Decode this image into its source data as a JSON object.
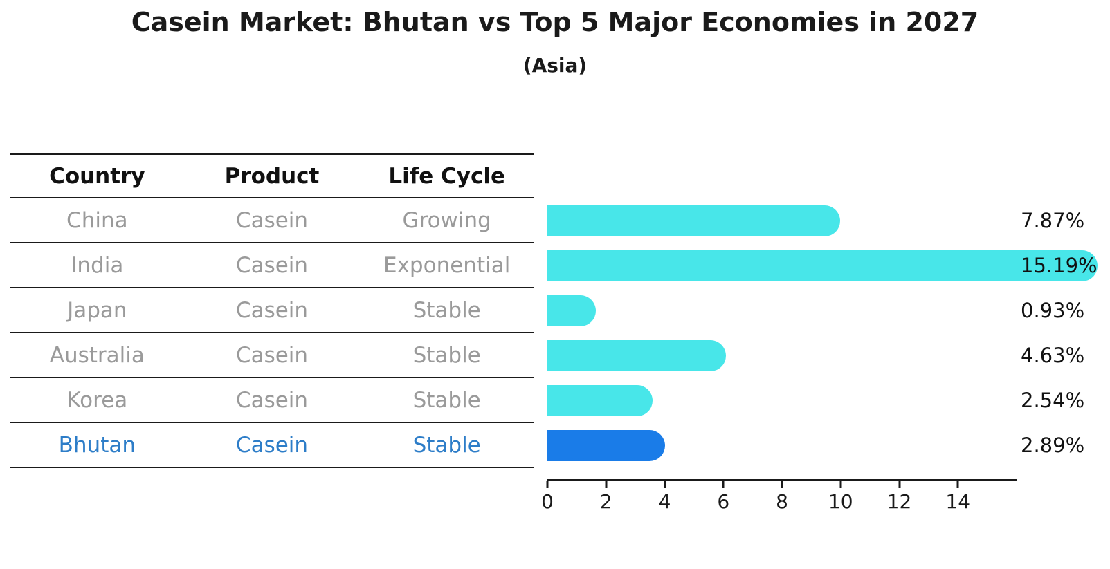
{
  "title": "Casein Market: Bhutan vs Top 5 Major Economies in 2027",
  "subtitle": "(Asia)",
  "table": {
    "headers": [
      "Country",
      "Product",
      "Life Cycle"
    ],
    "rows": [
      {
        "country": "China",
        "product": "Casein",
        "life_cycle": "Growing"
      },
      {
        "country": "India",
        "product": "Casein",
        "life_cycle": "Exponential"
      },
      {
        "country": "Japan",
        "product": "Casein",
        "life_cycle": "Stable"
      },
      {
        "country": "Australia",
        "product": "Casein",
        "life_cycle": "Stable"
      },
      {
        "country": "Korea",
        "product": "Casein",
        "life_cycle": "Stable"
      },
      {
        "country": "Bhutan",
        "product": "Casein",
        "life_cycle": "Stable"
      }
    ]
  },
  "chart_data": {
    "type": "bar",
    "orientation": "horizontal",
    "title": "Casein Market: Bhutan vs Top 5 Major Economies in 2027",
    "subtitle": "(Asia)",
    "categories": [
      "China",
      "India",
      "Japan",
      "Australia",
      "Korea",
      "Bhutan"
    ],
    "values": [
      7.87,
      15.19,
      0.93,
      4.63,
      2.54,
      2.89
    ],
    "value_labels": [
      "7.87%",
      "15.19%",
      "0.93%",
      "4.63%",
      "2.54%",
      "2.89%"
    ],
    "xlabel": "",
    "ylabel": "",
    "xlim": [
      0,
      16
    ],
    "xticks": [
      0,
      2,
      4,
      6,
      8,
      10,
      12,
      14
    ],
    "grid": false,
    "legend": false,
    "bar_color": "#48e6e9",
    "highlight_index": 5,
    "highlight_color": "#1a7ce8",
    "highlight_text_color": "#2d7dc8"
  }
}
